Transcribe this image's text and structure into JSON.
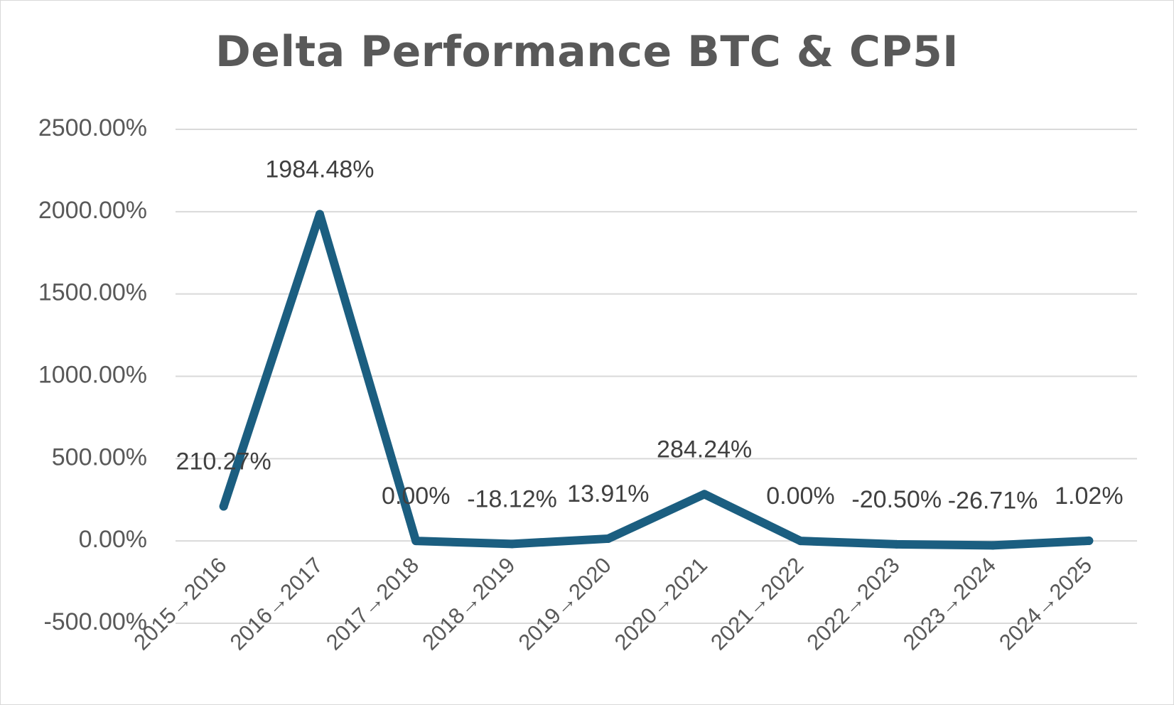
{
  "chart_data": {
    "type": "line",
    "title": "Delta Performance BTC & CP5I",
    "categories": [
      "2015→2016",
      "2016→2017",
      "2017→2018",
      "2018→2019",
      "2019→2020",
      "2020→2021",
      "2021→2022",
      "2022→2023",
      "2023→2024",
      "2024→2025"
    ],
    "series": [
      {
        "name": "Delta Performance BTC & CP5I",
        "values": [
          210.27,
          1984.48,
          0.0,
          -18.12,
          13.91,
          284.24,
          0.0,
          -20.5,
          -26.71,
          1.02
        ],
        "labels": [
          "210.27%",
          "1984.48%",
          "0.00%",
          "-18.12%",
          "13.91%",
          "284.24%",
          "0.00%",
          "-20.50%",
          "-26.71%",
          "1.02%"
        ],
        "color": "#1b5e80"
      }
    ],
    "ylim": [
      -500,
      2500
    ],
    "yticks": [
      -500,
      0,
      500,
      1000,
      1500,
      2000,
      2500
    ],
    "ytick_labels": [
      "-500.00%",
      "0.00%",
      "500.00%",
      "1000.00%",
      "1500.00%",
      "2000.00%",
      "2500.00%"
    ],
    "xlabel": "",
    "ylabel": "",
    "grid": true,
    "legend": "none"
  }
}
